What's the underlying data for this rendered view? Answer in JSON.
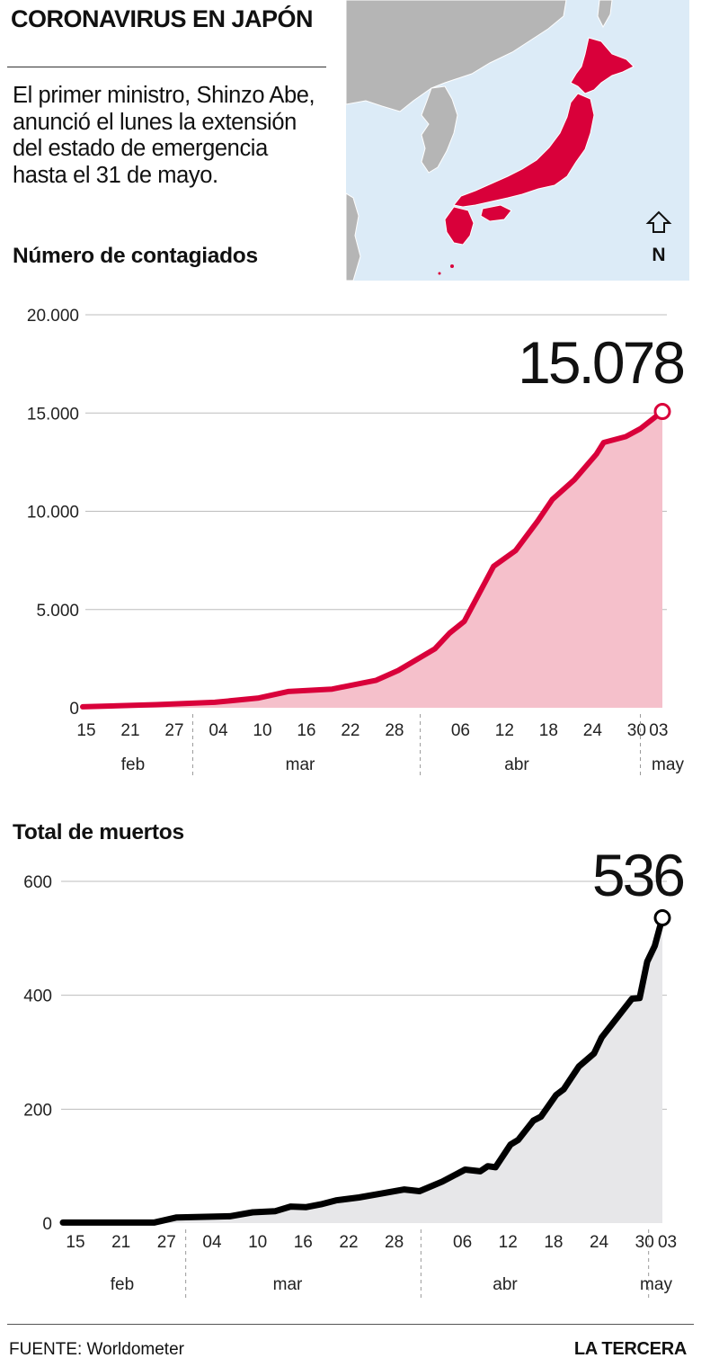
{
  "header": {
    "title": "CORONAVIRUS EN JAPÓN",
    "intro": "El primer ministro, Shinzo Abe, anunció el lunes la extensión del estado de emergencia hasta el 31 de mayo.",
    "map_compass_label": "N"
  },
  "colors": {
    "accent_red": "#d9003a",
    "red_fill": "#f5c0cb",
    "death_line": "#000000",
    "death_fill": "#e7e7e9",
    "map_sea": "#dcebf7",
    "map_land": "#b5b5b5",
    "grid": "#bdbdbd"
  },
  "chart_data": [
    {
      "id": "cases",
      "type": "area",
      "title": "Número de contagiados",
      "ylim": [
        0,
        20000
      ],
      "yticks": [
        0,
        5000,
        10000,
        15000,
        20000
      ],
      "ytick_labels": [
        "0",
        "5.000",
        "10.000",
        "15.000",
        "20.000"
      ],
      "xtick_labels": [
        "15",
        "21",
        "27",
        "04",
        "10",
        "16",
        "22",
        "28",
        "06",
        "12",
        "18",
        "24",
        "30",
        "03"
      ],
      "months": [
        "feb",
        "mar",
        "abr",
        "may"
      ],
      "x_start": "2020-02-15",
      "x_end": "2020-05-04",
      "callout_label": "15.078",
      "series": [
        {
          "values": [
            [
              "2020-02-15",
              50
            ],
            [
              "2020-02-25",
              160
            ],
            [
              "2020-03-04",
              280
            ],
            [
              "2020-03-10",
              500
            ],
            [
              "2020-03-14",
              830
            ],
            [
              "2020-03-20",
              950
            ],
            [
              "2020-03-26",
              1400
            ],
            [
              "2020-03-29",
              1900
            ],
            [
              "2020-04-03",
              3000
            ],
            [
              "2020-04-05",
              3800
            ],
            [
              "2020-04-07",
              4400
            ],
            [
              "2020-04-09",
              5800
            ],
            [
              "2020-04-11",
              7200
            ],
            [
              "2020-04-14",
              8000
            ],
            [
              "2020-04-17",
              9500
            ],
            [
              "2020-04-19",
              10600
            ],
            [
              "2020-04-22",
              11600
            ],
            [
              "2020-04-25",
              12900
            ],
            [
              "2020-04-26",
              13500
            ],
            [
              "2020-04-29",
              13800
            ],
            [
              "2020-05-01",
              14200
            ],
            [
              "2020-05-04",
              15078
            ]
          ]
        }
      ]
    },
    {
      "id": "deaths",
      "type": "area",
      "title": "Total de muertos",
      "ylim": [
        0,
        600
      ],
      "yticks": [
        0,
        200,
        400,
        600
      ],
      "ytick_labels": [
        "0",
        "200",
        "400",
        "600"
      ],
      "xtick_labels": [
        "15",
        "21",
        "27",
        "04",
        "10",
        "16",
        "22",
        "28",
        "06",
        "12",
        "18",
        "24",
        "30",
        "03"
      ],
      "months": [
        "feb",
        "mar",
        "abr",
        "may"
      ],
      "x_start": "2020-02-15",
      "x_end": "2020-05-04",
      "callout_label": "536",
      "series": [
        {
          "values": [
            [
              "2020-02-15",
              1
            ],
            [
              "2020-02-27",
              1
            ],
            [
              "2020-03-01",
              10
            ],
            [
              "2020-03-08",
              12
            ],
            [
              "2020-03-11",
              19
            ],
            [
              "2020-03-14",
              21
            ],
            [
              "2020-03-16",
              29
            ],
            [
              "2020-03-18",
              28
            ],
            [
              "2020-03-20",
              33
            ],
            [
              "2020-03-22",
              40
            ],
            [
              "2020-03-25",
              45
            ],
            [
              "2020-03-28",
              52
            ],
            [
              "2020-03-31",
              59
            ],
            [
              "2020-04-02",
              56
            ],
            [
              "2020-04-05",
              73
            ],
            [
              "2020-04-08",
              94
            ],
            [
              "2020-04-10",
              91
            ],
            [
              "2020-04-11",
              100
            ],
            [
              "2020-04-12",
              98
            ],
            [
              "2020-04-14",
              138
            ],
            [
              "2020-04-15",
              146
            ],
            [
              "2020-04-17",
              180
            ],
            [
              "2020-04-18",
              187
            ],
            [
              "2020-04-20",
              225
            ],
            [
              "2020-04-21",
              235
            ],
            [
              "2020-04-23",
              275
            ],
            [
              "2020-04-25",
              298
            ],
            [
              "2020-04-26",
              326
            ],
            [
              "2020-04-30",
              394
            ],
            [
              "2020-05-01",
              395
            ],
            [
              "2020-05-02",
              459
            ],
            [
              "2020-05-03",
              487
            ],
            [
              "2020-05-04",
              536
            ]
          ]
        }
      ]
    }
  ],
  "footer": {
    "source": "FUENTE: Worldometer",
    "brand": "LA TERCERA"
  }
}
